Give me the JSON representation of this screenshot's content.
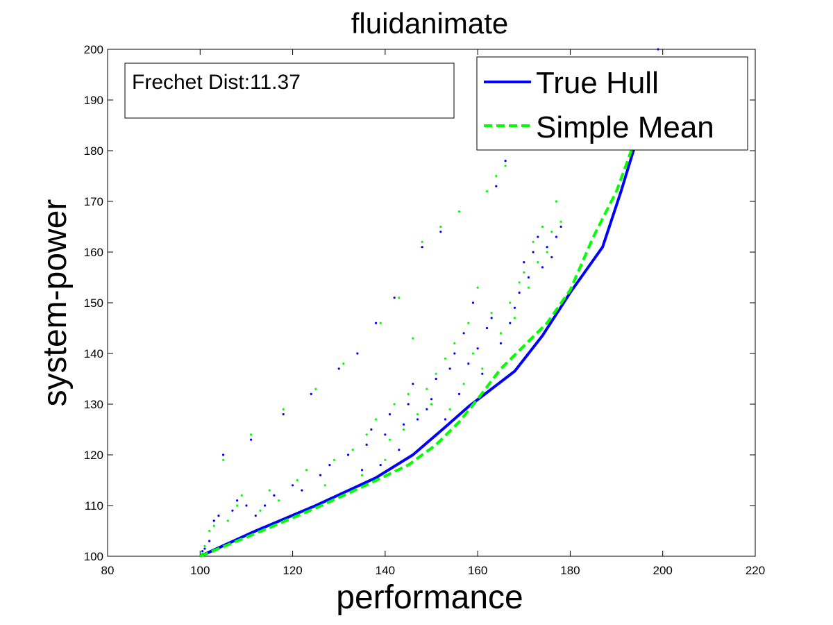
{
  "chart_data": {
    "type": "scatter",
    "title": "fluidanimate",
    "xlabel": "performance",
    "ylabel": "system-power",
    "xlim": [
      80,
      220
    ],
    "ylim": [
      100,
      200
    ],
    "xticks": [
      80,
      100,
      120,
      140,
      160,
      180,
      200,
      220
    ],
    "yticks": [
      100,
      110,
      120,
      130,
      140,
      150,
      160,
      170,
      180,
      190,
      200
    ],
    "grid": false,
    "legend_position": "top-right",
    "annotation": "Frechet Dist:11.37",
    "colors": {
      "true_hull": "#0000ff",
      "simple_mean": "#00ff00",
      "points_blue": "#0000ff",
      "points_green": "#00ff00"
    },
    "series": [
      {
        "name": "True Hull",
        "style": "solid",
        "color": "#0000ff",
        "x": [
          100,
          112,
          125,
          138,
          146,
          153,
          158,
          163,
          168,
          174,
          180,
          187,
          191,
          194
        ],
        "y": [
          100,
          105,
          110,
          115.5,
          120,
          125.5,
          129.5,
          133,
          136.5,
          143.5,
          152,
          161,
          172,
          181
        ]
      },
      {
        "name": "Simple Mean",
        "style": "dashed",
        "color": "#00ff00",
        "x": [
          100,
          112,
          125,
          137,
          145,
          151,
          156,
          160,
          165,
          170,
          175,
          180,
          185,
          190,
          194
        ],
        "y": [
          100,
          104.5,
          109.5,
          114.5,
          118,
          122,
          126.5,
          131,
          137,
          141.5,
          146,
          152.5,
          163,
          172,
          182
        ]
      }
    ],
    "scatter_points": {
      "blue": [
        [
          100.5,
          101
        ],
        [
          101,
          101.5
        ],
        [
          102,
          103
        ],
        [
          103,
          107
        ],
        [
          104,
          108
        ],
        [
          105,
          120
        ],
        [
          107,
          109
        ],
        [
          108,
          111
        ],
        [
          110,
          110
        ],
        [
          111,
          123
        ],
        [
          112,
          108
        ],
        [
          114,
          110
        ],
        [
          116,
          112
        ],
        [
          118,
          128
        ],
        [
          120,
          114
        ],
        [
          122,
          113
        ],
        [
          124,
          132
        ],
        [
          126,
          116
        ],
        [
          128,
          118
        ],
        [
          130,
          137
        ],
        [
          132,
          120
        ],
        [
          134,
          140
        ],
        [
          135,
          117
        ],
        [
          136,
          122
        ],
        [
          137,
          125
        ],
        [
          138,
          146
        ],
        [
          139,
          118
        ],
        [
          140,
          124
        ],
        [
          141,
          128
        ],
        [
          142,
          151
        ],
        [
          143,
          121
        ],
        [
          144,
          126
        ],
        [
          145,
          130
        ],
        [
          146,
          134
        ],
        [
          147,
          127
        ],
        [
          148,
          161
        ],
        [
          149,
          129
        ],
        [
          150,
          131
        ],
        [
          151,
          135
        ],
        [
          152,
          164
        ],
        [
          153,
          127
        ],
        [
          154,
          137
        ],
        [
          155,
          140
        ],
        [
          156,
          132
        ],
        [
          157,
          144
        ],
        [
          158,
          138
        ],
        [
          159,
          150
        ],
        [
          160,
          141
        ],
        [
          161,
          136
        ],
        [
          162,
          145
        ],
        [
          163,
          147
        ],
        [
          164,
          173
        ],
        [
          165,
          142
        ],
        [
          166,
          178
        ],
        [
          167,
          146
        ],
        [
          168,
          149
        ],
        [
          169,
          152
        ],
        [
          170,
          158
        ],
        [
          171,
          155
        ],
        [
          172,
          160
        ],
        [
          173,
          163
        ],
        [
          174,
          157
        ],
        [
          175,
          161
        ],
        [
          176,
          159
        ],
        [
          177,
          163
        ],
        [
          178,
          165
        ],
        [
          199,
          200
        ]
      ],
      "green": [
        [
          100.5,
          100.5
        ],
        [
          101,
          102
        ],
        [
          102,
          105
        ],
        [
          103,
          106
        ],
        [
          104,
          108
        ],
        [
          105,
          119
        ],
        [
          106,
          107
        ],
        [
          108,
          110
        ],
        [
          109,
          112
        ],
        [
          111,
          124
        ],
        [
          113,
          109
        ],
        [
          115,
          113
        ],
        [
          117,
          111
        ],
        [
          118,
          129
        ],
        [
          121,
          115
        ],
        [
          123,
          117
        ],
        [
          125,
          133
        ],
        [
          127,
          114
        ],
        [
          129,
          119
        ],
        [
          131,
          138
        ],
        [
          133,
          121
        ],
        [
          135,
          116
        ],
        [
          136,
          124
        ],
        [
          138,
          127
        ],
        [
          139,
          146
        ],
        [
          140,
          119
        ],
        [
          141,
          123
        ],
        [
          142,
          130
        ],
        [
          143,
          151
        ],
        [
          144,
          125
        ],
        [
          145,
          132
        ],
        [
          146,
          143
        ],
        [
          147,
          128
        ],
        [
          148,
          162
        ],
        [
          149,
          133
        ],
        [
          150,
          130
        ],
        [
          151,
          136
        ],
        [
          152,
          165
        ],
        [
          153,
          139
        ],
        [
          154,
          129
        ],
        [
          155,
          142
        ],
        [
          156,
          168
        ],
        [
          157,
          134
        ],
        [
          158,
          146
        ],
        [
          159,
          140
        ],
        [
          160,
          153
        ],
        [
          161,
          137
        ],
        [
          162,
          172
        ],
        [
          163,
          148
        ],
        [
          164,
          175
        ],
        [
          165,
          144
        ],
        [
          166,
          177
        ],
        [
          167,
          150
        ],
        [
          168,
          147
        ],
        [
          169,
          154
        ],
        [
          170,
          156
        ],
        [
          171,
          153
        ],
        [
          172,
          162
        ],
        [
          173,
          158
        ],
        [
          174,
          165
        ],
        [
          175,
          160
        ],
        [
          176,
          164
        ],
        [
          177,
          170
        ],
        [
          178,
          166
        ]
      ]
    }
  }
}
